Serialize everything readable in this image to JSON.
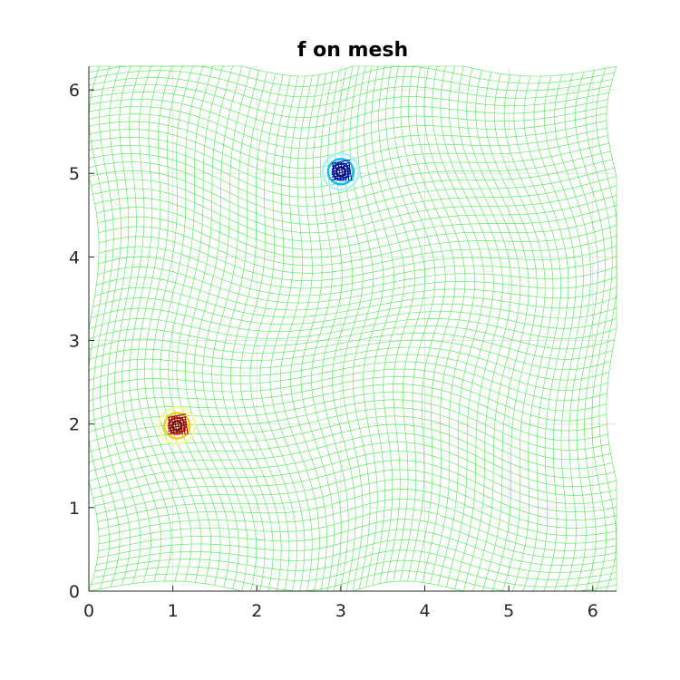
{
  "chart_data": {
    "type": "mesh",
    "title": "f on mesh",
    "xlabel": "",
    "ylabel": "",
    "xlim": [
      0,
      6.283
    ],
    "ylim": [
      0,
      6.283
    ],
    "xticks": [
      0,
      1,
      2,
      3,
      4,
      5,
      6
    ],
    "yticks": [
      0,
      1,
      2,
      3,
      4,
      5,
      6
    ],
    "grid": true,
    "mesh": {
      "nx": 61,
      "ny": 61,
      "base_color": "#4de84d",
      "deformation_amplitude": 0.25
    },
    "features": [
      {
        "name": "positive peak",
        "x": 1.05,
        "y": 1.98,
        "colormap": [
          "#7f0000",
          "#ff2a00",
          "#ffc800",
          "#fff7a0"
        ]
      },
      {
        "name": "negative peak",
        "x": 3.0,
        "y": 5.02,
        "colormap": [
          "#00007f",
          "#0040ff",
          "#00b4ff",
          "#a8f0ff"
        ]
      }
    ]
  }
}
